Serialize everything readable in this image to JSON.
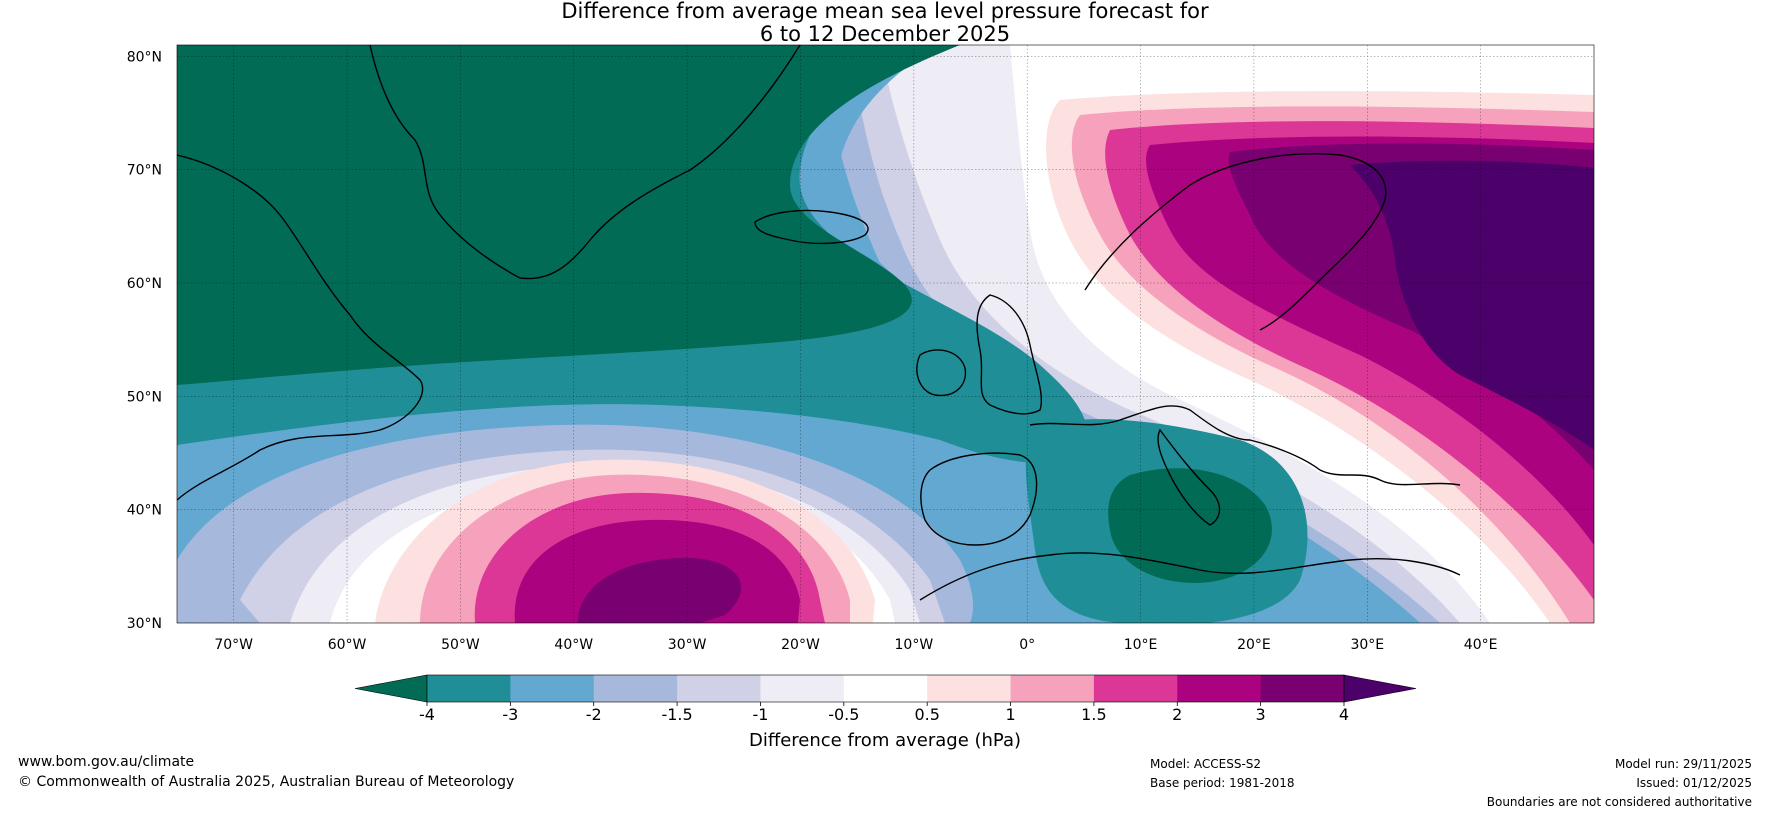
{
  "title": {
    "line1": "Difference from average mean sea level pressure forecast for",
    "line2": "6 to 12 December 2025"
  },
  "map": {
    "lat_ticks": [
      "80°N",
      "70°N",
      "60°N",
      "50°N",
      "40°N",
      "30°N"
    ],
    "lon_ticks": [
      "70°W",
      "60°W",
      "50°W",
      "40°W",
      "30°W",
      "20°W",
      "10°W",
      "0°",
      "10°E",
      "20°E",
      "30°E",
      "40°E"
    ],
    "extent": {
      "lon_min": -75,
      "lon_max": 50,
      "lat_min": 30,
      "lat_max": 81
    }
  },
  "colorbar": {
    "label": "Difference from average (hPa)",
    "tick_labels": [
      "-4",
      "-3",
      "-2",
      "-1.5",
      "-1",
      "-0.5",
      "0.5",
      "1",
      "1.5",
      "2",
      "3",
      "4"
    ],
    "colors": [
      "#016b55",
      "#1f8e96",
      "#62a8d1",
      "#a6b9dc",
      "#d0d0e6",
      "#eeecf4",
      "#ffffff",
      "#fde0e0",
      "#f7a2bd",
      "#dc3796",
      "#ab027f",
      "#790070",
      "#4b006a"
    ]
  },
  "footer": {
    "website": "www.bom.gov.au/climate",
    "copyright": "© Commonwealth of Australia 2025, Australian Bureau of Meteorology",
    "model": "Model: ACCESS-S2",
    "base_period": "Base period: 1981-2018",
    "model_run": "Model run: 29/11/2025",
    "issued": "Issued: 01/12/2025",
    "disclaimer": "Boundaries are not considered authoritative"
  }
}
